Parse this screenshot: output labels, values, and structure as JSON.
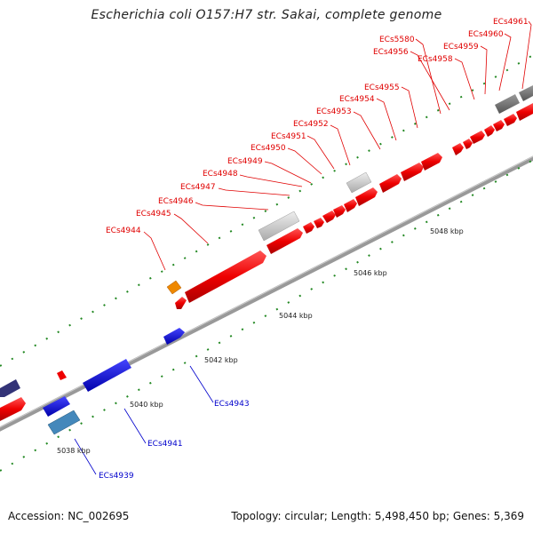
{
  "title": "Escherichia coli O157:H7 str. Sakai, complete genome",
  "footer": {
    "accession": "Accession: NC_002695",
    "topology": "Topology: circular; Length: 5,498,450 bp; Genes: 5,369"
  },
  "colors": {
    "forward_cds": "#ee1111",
    "reverse_cds": "#1111dd",
    "backbone": "#888888",
    "gc_ticks": "#228822",
    "label_top": "#e00000",
    "label_bottom": "#0000cc"
  },
  "tick_labels": [
    "5038 kbp",
    "5040 kbp",
    "5042 kbp",
    "5044 kbp",
    "5046 kbp",
    "5048 kbp"
  ],
  "top_labels": [
    "ECs4944",
    "ECs4945",
    "ECs4946",
    "ECs4947",
    "ECs4948",
    "ECs4949",
    "ECs4950",
    "ECs4951",
    "ECs4952",
    "ECs4953",
    "ECs4954",
    "ECs4955",
    "ECs5580",
    "ECs4956",
    "ECs4958",
    "ECs4959",
    "ECs4960",
    "ECs4961"
  ],
  "bottom_labels": [
    "ECs4943",
    "ECs4941",
    "ECs4939"
  ]
}
